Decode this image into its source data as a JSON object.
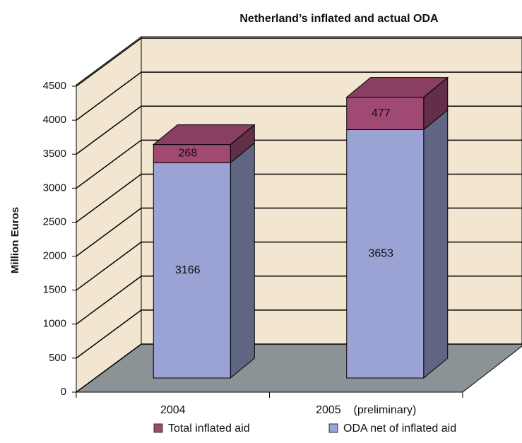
{
  "chart_data": {
    "type": "bar3d_stacked",
    "title": "Netherland’s  inflated and actual ODA",
    "ylabel": "Million Euros",
    "categories": [
      "2004",
      "2005    (preliminary)"
    ],
    "series": [
      {
        "name": "ODA net of inflated aid",
        "color": "#9aa3d4",
        "values": [
          3166,
          3653
        ]
      },
      {
        "name": "Total inflated aid",
        "color": "#a04a73",
        "values": [
          268,
          477
        ]
      }
    ],
    "ylim": [
      0,
      4500
    ],
    "yticks": [
      0,
      500,
      1000,
      1500,
      2000,
      2500,
      3000,
      3500,
      4000,
      4500
    ],
    "grid": true
  }
}
